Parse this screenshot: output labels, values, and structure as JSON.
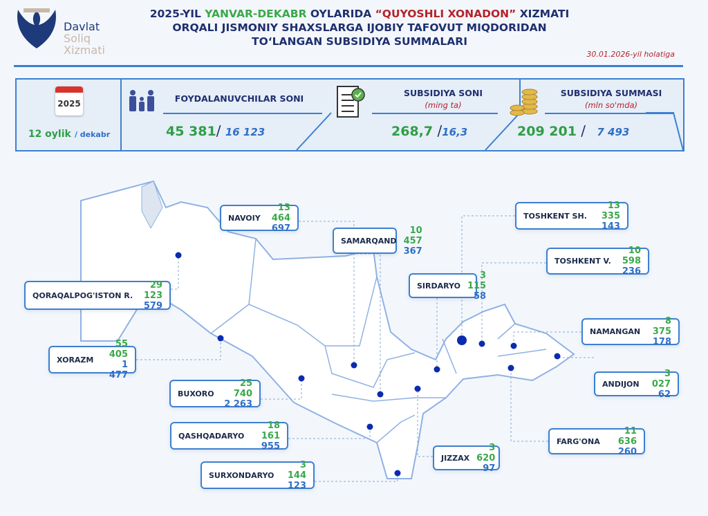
{
  "header": {
    "logo": {
      "line1": "Davlat",
      "line2": "Soliq",
      "line3": "Xizmati"
    },
    "title": {
      "line1_a": "2025-YIL ",
      "line1_b": "YANVAR-DEKABR",
      "line1_c": " OYLARIDA ",
      "line1_d": "“QUYOSHLI XONADON”",
      "line1_e": " XIZMATI",
      "line2": "ORQALI JISMONIY SHAXSLARGA IJOBIY TAFOVUT MIQDORIDAN",
      "line3": "TO‘LANGAN SUBSIDIYA SUMMALARI"
    },
    "as_of": "30.01.2026-yil holatiga"
  },
  "stats": {
    "period": {
      "year": "2025",
      "total": "12 oylik",
      "month": "/ dekabr"
    },
    "beneficiaries": {
      "label": "FOYDALANUVCHILAR SONI",
      "total": "45 381",
      "month": "16 123"
    },
    "count": {
      "label": "SUBSIDIYA SONI",
      "unit": "(ming ta)",
      "total": "268,7",
      "month": "16,3"
    },
    "sum": {
      "label": "SUBSIDIYA SUMMASI",
      "unit": "(mln so'mda)",
      "total": "209 201",
      "month": "7 493"
    }
  },
  "colors": {
    "accent": "#3c7fd0",
    "green": "#3aa84a",
    "red": "#b5222a",
    "navy": "#1f2f6e",
    "dot": "#0a2bb0"
  },
  "regions": [
    {
      "name": "NAVOIY",
      "total": "13 464",
      "month": "697"
    },
    {
      "name": "SAMARQAND",
      "total": "10 457",
      "month": "367"
    },
    {
      "name": "TOSHKENT SH.",
      "total": "13 335",
      "month": "143"
    },
    {
      "name": "TOSHKENT V.",
      "total": "10 598",
      "month": "236"
    },
    {
      "name": "SIRDARYO",
      "total": "3 115",
      "month": "58"
    },
    {
      "name": "QORAQALPOG'ISTON R.",
      "total": "29 123",
      "month": "579"
    },
    {
      "name": "NAMANGAN",
      "total": "8 375",
      "month": "178"
    },
    {
      "name": "XORAZM",
      "total": "55 405",
      "month": "1 477"
    },
    {
      "name": "ANDIJON",
      "total": "3 027",
      "month": "62"
    },
    {
      "name": "BUXORO",
      "total": "25 740",
      "month": "2 263"
    },
    {
      "name": "QASHQADARYO",
      "total": "18 161",
      "month": "955"
    },
    {
      "name": "FARG'ONA",
      "total": "11 636",
      "month": "260"
    },
    {
      "name": "JIZZAX",
      "total": "3 620",
      "month": "97"
    },
    {
      "name": "SURXONDARYO",
      "total": "3 144",
      "month": "123"
    }
  ]
}
